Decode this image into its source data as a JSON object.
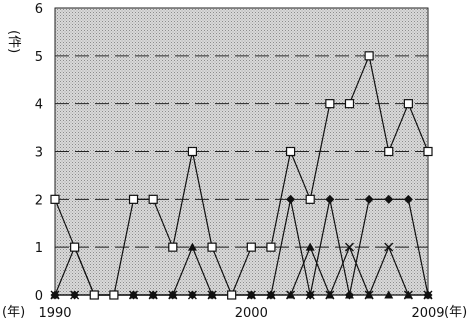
{
  "chart_data": {
    "type": "line",
    "title": "",
    "xlabel": "(年)",
    "ylabel": "(件)",
    "x": [
      1990,
      1991,
      1992,
      1993,
      1994,
      1995,
      1996,
      1997,
      1998,
      1999,
      2000,
      2001,
      2002,
      2003,
      2004,
      2005,
      2006,
      2007,
      2008,
      2009
    ],
    "x_tick_labels": [
      "1990",
      "2000",
      "2009"
    ],
    "x_tick_values": [
      1990,
      2000,
      2009
    ],
    "ylim": [
      0,
      6
    ],
    "y_ticks": [
      0,
      1,
      2,
      3,
      4,
      5,
      6
    ],
    "grid": "horizontal dashed",
    "background": "gray stipple",
    "legend": "none",
    "series": [
      {
        "marker": "square",
        "values": [
          2,
          1,
          0,
          0,
          2,
          2,
          1,
          3,
          1,
          0,
          1,
          1,
          3,
          2,
          4,
          4,
          5,
          3,
          4,
          3
        ]
      },
      {
        "marker": "diamond",
        "values": [
          0,
          0,
          0,
          0,
          0,
          0,
          0,
          0,
          0,
          0,
          0,
          0,
          2,
          0,
          2,
          0,
          2,
          2,
          2,
          0
        ]
      },
      {
        "marker": "triangle",
        "values": [
          0,
          1,
          0,
          0,
          0,
          0,
          0,
          1,
          0,
          0,
          0,
          0,
          0,
          1,
          0,
          0,
          0,
          0,
          0,
          0
        ]
      },
      {
        "marker": "cross",
        "values": [
          0,
          0,
          0,
          0,
          0,
          0,
          0,
          0,
          0,
          0,
          0,
          0,
          0,
          0,
          0,
          1,
          0,
          1,
          0,
          0
        ]
      }
    ]
  }
}
